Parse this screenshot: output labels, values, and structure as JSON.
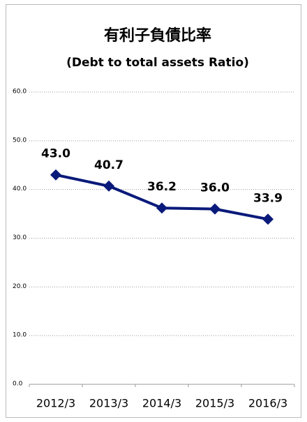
{
  "chart_data": {
    "type": "line",
    "title": "有利子負債比率",
    "subtitle": "(Debt to total assets Ratio)",
    "categories": [
      "2012/3",
      "2013/3",
      "2014/3",
      "2015/3",
      "2016/3"
    ],
    "series": [
      {
        "name": "有利子負債比率",
        "color": "#0a1a7a",
        "values": [
          43.0,
          40.7,
          36.2,
          36.0,
          33.9
        ],
        "value_labels": [
          "43.0",
          "40.7",
          "36.2",
          "36.0",
          "33.9"
        ]
      }
    ],
    "ylim": [
      0,
      60
    ],
    "yticks": [
      {
        "value": 0,
        "label": "0.0"
      },
      {
        "value": 10,
        "label": "10.0"
      },
      {
        "value": 20,
        "label": "20.0"
      },
      {
        "value": 30,
        "label": "30.0"
      },
      {
        "value": 40,
        "label": "40.0"
      },
      {
        "value": 50,
        "label": "50.0"
      },
      {
        "value": 60,
        "label": "60.0"
      }
    ],
    "grid": true
  }
}
